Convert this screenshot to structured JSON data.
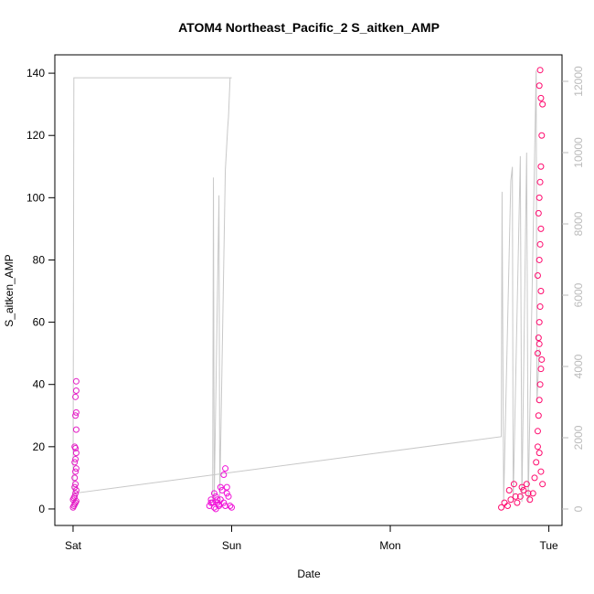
{
  "chart_data": {
    "type": "scatter",
    "title": "ATOM4 Northeast_Pacific_2 S_aitken_AMP",
    "x_label": "Date",
    "y_label": "S_aitken_AMP",
    "xlim": [
      -0.115,
      3.083
    ],
    "xticks": [
      {
        "value": 0,
        "label": "Sat"
      },
      {
        "value": 1,
        "label": "Sun"
      },
      {
        "value": 2,
        "label": "Mon"
      },
      {
        "value": 3,
        "label": "Tue"
      }
    ],
    "ylim": [
      -5.3,
      145.9
    ],
    "yticks": [
      0,
      20,
      40,
      60,
      80,
      100,
      120,
      140
    ],
    "y2lim": [
      -462,
      12744
    ],
    "y2ticks": [
      0,
      2000,
      4000,
      6000,
      8000,
      10000,
      12000
    ],
    "series": [
      {
        "color": "#e41cc6",
        "x": [
          0.0,
          0.005,
          0.01,
          0.015,
          0.02,
          0.0,
          0.005,
          0.01,
          0.015,
          0.02,
          0.01,
          0.015,
          0.01,
          0.015,
          0.02,
          0.01,
          0.015,
          0.02,
          0.015,
          0.01,
          0.02,
          0.015,
          0.02,
          0.015,
          0.02,
          0.02
        ],
        "values": [
          0.5,
          1,
          1.5,
          2,
          2.5,
          3,
          3.5,
          4,
          5,
          6,
          7,
          8,
          10,
          12,
          13,
          15,
          16,
          18,
          19.5,
          20,
          25.5,
          30,
          31,
          36,
          38,
          41
        ]
      },
      {
        "color": "#f012d8",
        "x": [
          0.86,
          0.87,
          0.88,
          0.89,
          0.9,
          0.91,
          0.92,
          0.93,
          0.94,
          0.95,
          0.96,
          0.97,
          0.98,
          0.99,
          1.0,
          0.87,
          0.89,
          0.91,
          0.93,
          0.95,
          0.96,
          0.97,
          0.9,
          0.92
        ],
        "values": [
          1,
          3,
          2,
          0.5,
          4,
          2,
          1,
          3,
          6,
          2,
          1,
          7,
          4,
          1,
          0.5,
          2,
          5,
          3,
          7,
          11,
          13,
          5,
          0,
          1.5
        ]
      },
      {
        "color": "#ff0a6e",
        "x": [
          2.7,
          2.72,
          2.74,
          2.76,
          2.78,
          2.8,
          2.82,
          2.84,
          2.86,
          2.88,
          2.9,
          2.91,
          2.92,
          2.93,
          2.94,
          2.95,
          2.96,
          2.75,
          2.79,
          2.83,
          2.87,
          2.93,
          2.935,
          2.94,
          2.945,
          2.95,
          2.93,
          2.935,
          2.94,
          2.945,
          2.95,
          2.93,
          2.94,
          2.945,
          2.95,
          2.935,
          2.94,
          2.945,
          2.95,
          2.955,
          2.96,
          2.94,
          2.945,
          2.95,
          2.955,
          2.94
        ],
        "values": [
          0.5,
          2,
          1,
          3,
          8,
          2,
          4,
          6,
          8,
          3,
          5,
          10,
          15,
          20,
          18,
          12,
          8,
          6,
          4,
          7,
          5,
          25,
          30,
          35,
          40,
          45,
          50,
          55,
          60,
          65,
          70,
          75,
          80,
          85,
          90,
          95,
          100,
          105,
          110,
          120,
          130,
          136,
          141,
          132,
          48,
          53
        ]
      },
      {
        "type": "line",
        "axis": "y2",
        "color": "#c8c8c8",
        "x": [
          1.0,
          0.005,
          0.0,
          2.7,
          2.705,
          2.715,
          2.76,
          2.77,
          2.775,
          2.82,
          2.83,
          2.86,
          2.87,
          2.92,
          2.925,
          2.94,
          null,
          0.88,
          0.885,
          0.89,
          0.92,
          0.925,
          0.96,
          0.975,
          0.98,
          0.99
        ],
        "values": [
          12100,
          12100,
          436,
          2030,
          8900,
          200,
          9200,
          9600,
          200,
          9900,
          200,
          10000,
          200,
          12300,
          3000,
          4500,
          null,
          200,
          9300,
          300,
          8800,
          300,
          9500,
          10700,
          11000,
          12100
        ]
      }
    ]
  }
}
